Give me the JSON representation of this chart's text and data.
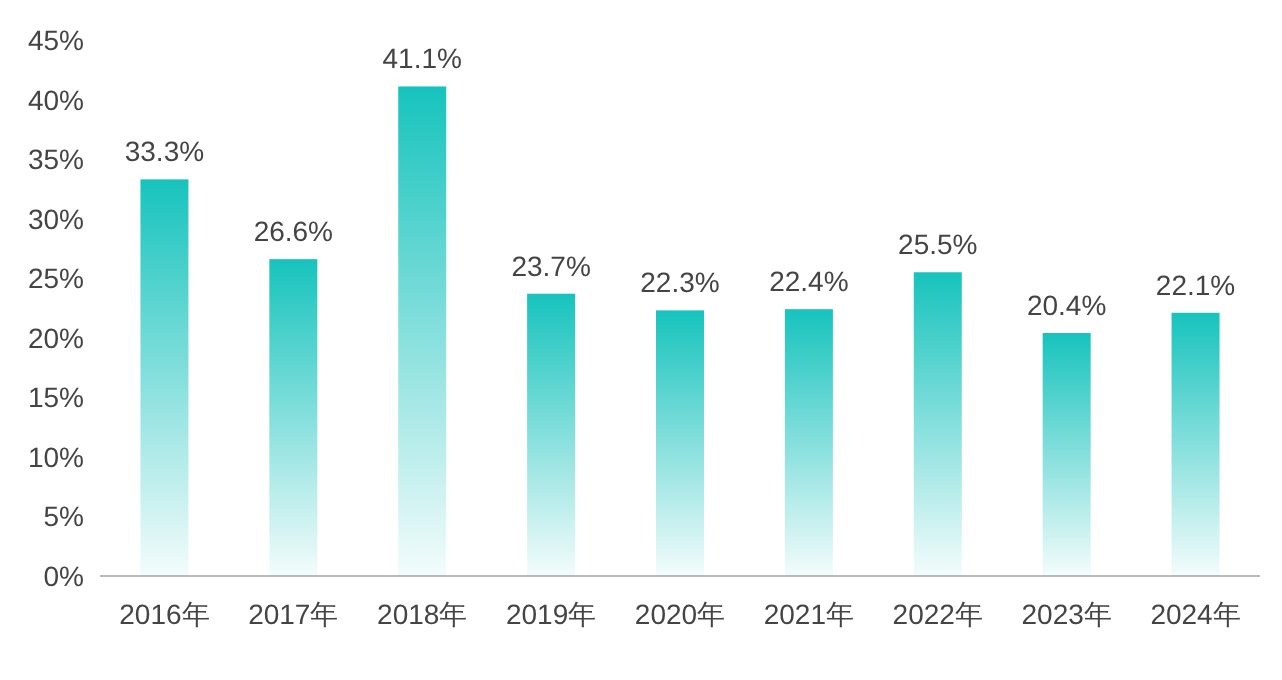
{
  "chart_data": {
    "type": "bar",
    "categories": [
      "2016年",
      "2017年",
      "2018年",
      "2019年",
      "2020年",
      "2021年",
      "2022年",
      "2023年",
      "2024年"
    ],
    "values": [
      33.3,
      26.6,
      41.1,
      23.7,
      22.3,
      22.4,
      25.5,
      20.4,
      22.1
    ],
    "value_labels": [
      "33.3%",
      "26.6%",
      "41.1%",
      "23.7%",
      "22.3%",
      "22.4%",
      "25.5%",
      "20.4%",
      "22.1%"
    ],
    "color": "#17c3bd",
    "ylim": [
      0,
      45
    ],
    "yticks": [
      {
        "value": 0,
        "label": "0%"
      },
      {
        "value": 5,
        "label": "5%"
      },
      {
        "value": 10,
        "label": "10%"
      },
      {
        "value": 15,
        "label": "15%"
      },
      {
        "value": 20,
        "label": "20%"
      },
      {
        "value": 25,
        "label": "25%"
      },
      {
        "value": 30,
        "label": "30%"
      },
      {
        "value": 35,
        "label": "35%"
      },
      {
        "value": 40,
        "label": "40%"
      },
      {
        "value": 45,
        "label": "45%"
      }
    ],
    "grid": false
  }
}
